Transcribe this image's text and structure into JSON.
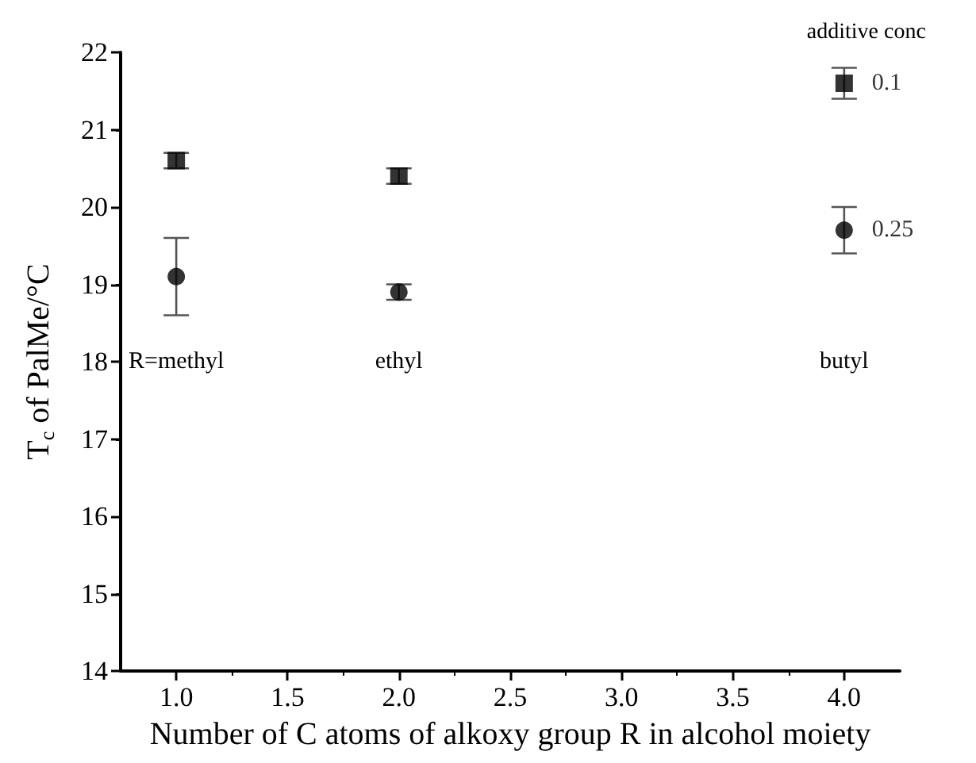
{
  "chart_data": {
    "type": "scatter",
    "xlabel": "Number of C atoms of alkoxy group R in alcohol moiety",
    "ylabel": "T$_{c}$ of PalMe/°C",
    "legend_title": "additive conc",
    "x": [
      1,
      2,
      4
    ],
    "series": [
      {
        "name": "0.1",
        "color": "#000000",
        "marker": "square",
        "values": [
          20.6,
          20.4,
          21.6
        ],
        "errors": [
          0.1,
          0.1,
          0.2
        ]
      },
      {
        "name": "0.25",
        "color": "#000000",
        "marker": "circle",
        "values": [
          19.1,
          18.9,
          19.7
        ],
        "errors": [
          0.5,
          0.1,
          0.3
        ]
      }
    ],
    "annotations": [
      "R=methyl",
      "ethyl",
      "butyl"
    ],
    "xlim": [
      0.75,
      4.25
    ],
    "xticks": [
      {
        "value": 1,
        "label": "1.0"
      },
      {
        "value": 1.5,
        "label": "1.5"
      },
      {
        "value": 2,
        "label": "2.0"
      },
      {
        "value": 2.5,
        "label": "2.5"
      },
      {
        "value": 3,
        "label": "3.0"
      },
      {
        "value": 3.5,
        "label": "3.5"
      },
      {
        "value": 4,
        "label": "4.0"
      }
    ],
    "ylim": [
      14,
      22
    ],
    "yticks": [
      14,
      15,
      16,
      17,
      18,
      19,
      20,
      21,
      22
    ],
    "grid": false,
    "legend": false
  }
}
